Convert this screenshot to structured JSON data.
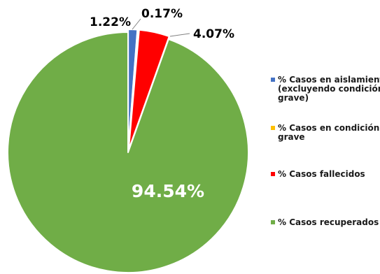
{
  "chart_data": {
    "type": "pie",
    "title": "",
    "slices": [
      {
        "label": "% Casos en aislamiento (excluyendo condición grave)",
        "value": 1.22,
        "display": "1.22%",
        "color": "#4472C4"
      },
      {
        "label": "% Casos en condición grave",
        "value": 0.17,
        "display": "0.17%",
        "color": "#FFC000"
      },
      {
        "label": "% Casos fallecidos",
        "value": 4.07,
        "display": "4.07%",
        "color": "#FF0000"
      },
      {
        "label": "% Casos recuperados",
        "value": 94.54,
        "display": "94.54%",
        "color": "#70AD47"
      }
    ],
    "legend": {
      "position": "right",
      "entries": [
        {
          "lines": [
            "% Casos en aislamiento",
            "(excluyendo condición",
            "grave)"
          ],
          "color": "#4472C4"
        },
        {
          "lines": [
            "% Casos en condición",
            "grave"
          ],
          "color": "#FFC000"
        },
        {
          "lines": [
            "% Casos fallecidos"
          ],
          "color": "#FF0000"
        },
        {
          "lines": [
            "% Casos recuperados"
          ],
          "color": "#70AD47"
        }
      ]
    }
  }
}
